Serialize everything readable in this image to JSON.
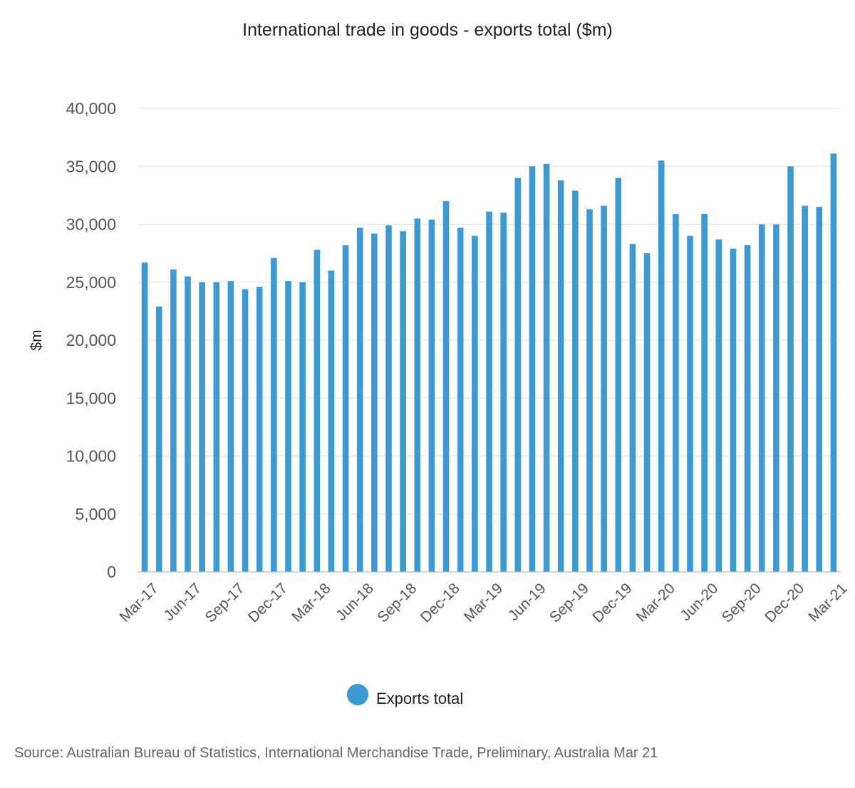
{
  "chart_data": {
    "type": "bar",
    "title": "International trade in goods - exports total ($m)",
    "ylabel": "$m",
    "xlabel": "",
    "ylim": [
      0,
      40000
    ],
    "yticks": [
      "0",
      "5,000",
      "10,000",
      "15,000",
      "20,000",
      "25,000",
      "30,000",
      "35,000",
      "40,000"
    ],
    "grid": true,
    "legend_position": "bottom",
    "bar_color": "#3b9ad4",
    "categories": [
      "Mar-17",
      "Apr-17",
      "May-17",
      "Jun-17",
      "Jul-17",
      "Aug-17",
      "Sep-17",
      "Oct-17",
      "Nov-17",
      "Dec-17",
      "Jan-18",
      "Feb-18",
      "Mar-18",
      "Apr-18",
      "May-18",
      "Jun-18",
      "Jul-18",
      "Aug-18",
      "Sep-18",
      "Oct-18",
      "Nov-18",
      "Dec-18",
      "Jan-19",
      "Feb-19",
      "Mar-19",
      "Apr-19",
      "May-19",
      "Jun-19",
      "Jul-19",
      "Aug-19",
      "Sep-19",
      "Oct-19",
      "Nov-19",
      "Dec-19",
      "Jan-20",
      "Feb-20",
      "Mar-20",
      "Apr-20",
      "May-20",
      "Jun-20",
      "Jul-20",
      "Aug-20",
      "Sep-20",
      "Oct-20",
      "Nov-20",
      "Dec-20",
      "Jan-21",
      "Feb-21",
      "Mar-21"
    ],
    "tick_labels_shown": [
      "Mar-17",
      "Jun-17",
      "Sep-17",
      "Dec-17",
      "Mar-18",
      "Jun-18",
      "Sep-18",
      "Dec-18",
      "Mar-19",
      "Jun-19",
      "Sep-19",
      "Dec-19",
      "Mar-20",
      "Jun-20",
      "Sep-20",
      "Dec-20",
      "Mar-21"
    ],
    "series": [
      {
        "name": "Exports total",
        "values": [
          26700,
          22900,
          26100,
          25500,
          25000,
          25000,
          25100,
          24400,
          24600,
          27100,
          25100,
          25000,
          27800,
          26000,
          28200,
          29700,
          29200,
          29900,
          29400,
          30500,
          30400,
          32000,
          29700,
          29000,
          31100,
          31000,
          34000,
          35000,
          35200,
          33800,
          32900,
          31300,
          31600,
          34000,
          28300,
          27500,
          35500,
          30900,
          29000,
          30900,
          28700,
          27900,
          28200,
          30000,
          30000,
          35000,
          31600,
          31500,
          36100
        ]
      }
    ]
  },
  "source_note": "Source: Australian Bureau of Statistics, International Merchandise Trade, Preliminary, Australia Mar 21"
}
